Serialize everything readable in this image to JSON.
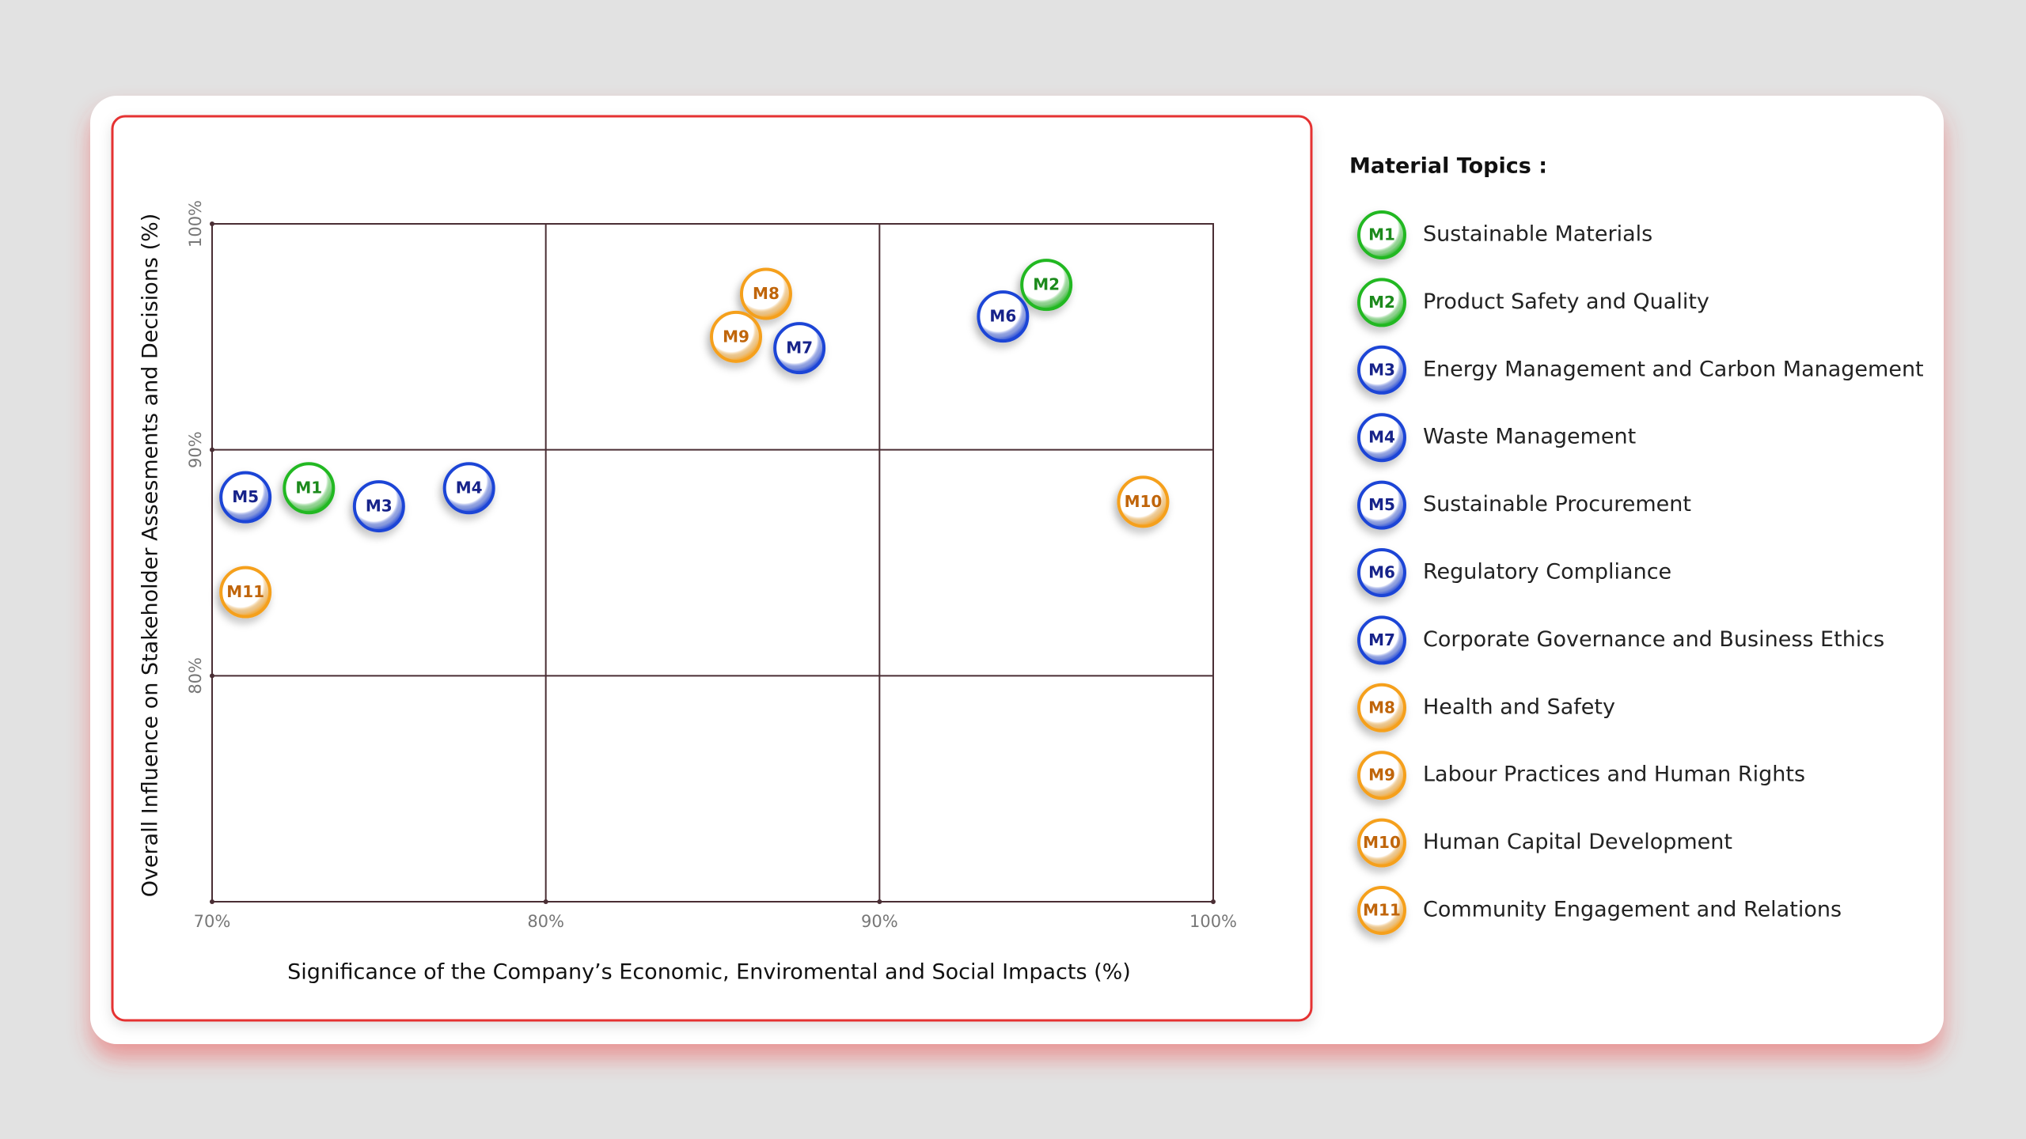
{
  "chart_data": {
    "type": "scatter",
    "x_label": "Significance of the Company’s Economic, Enviromental and Social Impacts (%)",
    "y_label": "Overall Influence on Stakeholder Assesments and Decisions (%)",
    "xlim": [
      70,
      100
    ],
    "ylim": [
      70,
      100
    ],
    "xticks": [
      {
        "value": 70,
        "label": "70%"
      },
      {
        "value": 80,
        "label": "80%"
      },
      {
        "value": 90,
        "label": "90%"
      },
      {
        "value": 100,
        "label": "100%"
      }
    ],
    "yticks": [
      {
        "value": 80,
        "label": "80%"
      },
      {
        "value": 90,
        "label": "90%"
      },
      {
        "value": 100,
        "label": "100%"
      }
    ],
    "grid": true,
    "legend_title": "Material Topics :",
    "series": [
      {
        "label": "M1",
        "name": "Sustainable Materials",
        "color": "#22b822",
        "x": [
          72.9
        ],
        "y": [
          88.3
        ]
      },
      {
        "label": "M2",
        "name": "Product Safety and Quality",
        "color": "#22b822",
        "x": [
          95.0
        ],
        "y": [
          97.3
        ]
      },
      {
        "label": "M3",
        "name": "Energy Management and Carbon Management",
        "color": "#1f45d6",
        "x": [
          75.0
        ],
        "y": [
          87.5
        ]
      },
      {
        "label": "M4",
        "name": "Waste Management",
        "color": "#1f45d6",
        "x": [
          77.7
        ],
        "y": [
          88.3
        ]
      },
      {
        "label": "M5",
        "name": "Sustainable Procurement",
        "color": "#1f45d6",
        "x": [
          71.0
        ],
        "y": [
          87.9
        ]
      },
      {
        "label": "M6",
        "name": "Regulatory Compliance",
        "color": "#1f45d6",
        "x": [
          93.7
        ],
        "y": [
          95.9
        ]
      },
      {
        "label": "M7",
        "name": "Corporate Governance and Business Ethics",
        "color": "#1f45d6",
        "x": [
          87.6
        ],
        "y": [
          94.5
        ]
      },
      {
        "label": "M8",
        "name": "Health and Safety",
        "color": "#f5a01e",
        "x": [
          86.6
        ],
        "y": [
          96.9
        ]
      },
      {
        "label": "M9",
        "name": "Labour Practices and Human Rights",
        "color": "#f5a01e",
        "x": [
          85.7
        ],
        "y": [
          95.0
        ]
      },
      {
        "label": "M10",
        "name": "Human Capital Development",
        "color": "#f5a01e",
        "x": [
          97.9
        ],
        "y": [
          87.7
        ]
      },
      {
        "label": "M11",
        "name": "Community Engagement and Relations",
        "color": "#f5a01e",
        "x": [
          71.0
        ],
        "y": [
          83.7
        ]
      }
    ]
  }
}
